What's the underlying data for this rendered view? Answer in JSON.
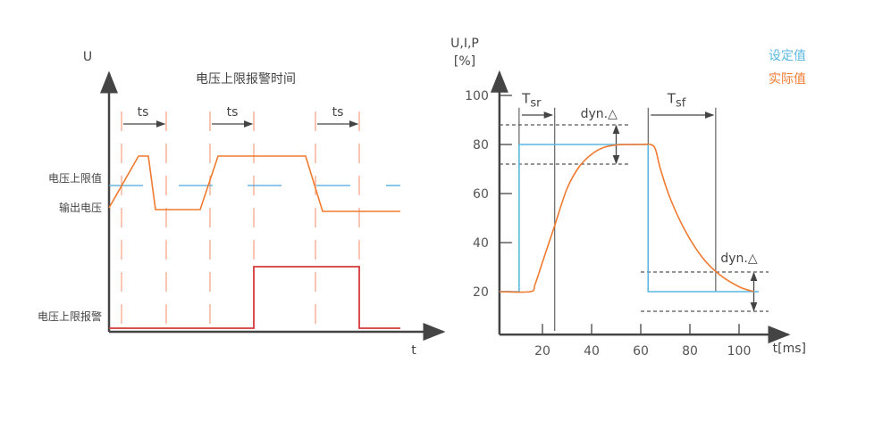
{
  "left_diagram": {
    "title": "电压上限报警时间",
    "y_axis_label": "U",
    "x_axis_label": "t",
    "ts_labels": [
      "ts",
      "ts",
      "ts"
    ],
    "row_labels": {
      "upper_limit_value": "电压上限值",
      "output_voltage": "输出电压",
      "upper_limit_alarm": "电压上限报警"
    },
    "colors": {
      "output": "#f07a30",
      "limit": "#4aa8d8",
      "alarm": "#d43a3a",
      "guide": "#f4a080"
    }
  },
  "chart_data": {
    "type": "line",
    "ylabel_line1": "U,I,P",
    "ylabel_line2": "[%]",
    "xlabel": "t[ms]",
    "xlim": [
      2.5,
      120
    ],
    "ylim": [
      2.5,
      105
    ],
    "x_ticks": [
      20,
      40,
      60,
      80,
      100
    ],
    "y_ticks": [
      20,
      40,
      60,
      80,
      100
    ],
    "legend": [
      {
        "name": "设定值",
        "color": "#5bb8e0"
      },
      {
        "name": "实际值",
        "color": "#f07a30"
      }
    ],
    "legend_placement": "top-right",
    "series": [
      {
        "name": "设定值",
        "x": [
          0,
          10.5,
          10.5,
          63,
          63,
          108
        ],
        "y": [
          20,
          20,
          80,
          80,
          20,
          20
        ]
      },
      {
        "name": "实际值",
        "x": [
          0,
          15,
          17,
          20,
          25,
          30,
          35,
          40,
          45,
          50,
          55,
          60,
          64,
          66,
          68,
          72,
          78,
          85,
          92,
          100,
          106
        ],
        "y": [
          20,
          20,
          23,
          32,
          47,
          62,
          71,
          76,
          78.8,
          79.8,
          80,
          80,
          80,
          78,
          70,
          58,
          45,
          34,
          27,
          22,
          20
        ]
      }
    ],
    "annotations": {
      "tsr": {
        "label_main": "T",
        "label_sub": "sr",
        "from": 10.5,
        "to": 25
      },
      "tsf": {
        "label_main": "T",
        "label_sub": "sf",
        "from": 63,
        "to": 90.5
      },
      "dyn_upper": {
        "label": "dyn.△",
        "band": [
          72,
          88
        ]
      },
      "dyn_lower": {
        "label": "dyn.△",
        "band": [
          12,
          28
        ]
      }
    }
  }
}
